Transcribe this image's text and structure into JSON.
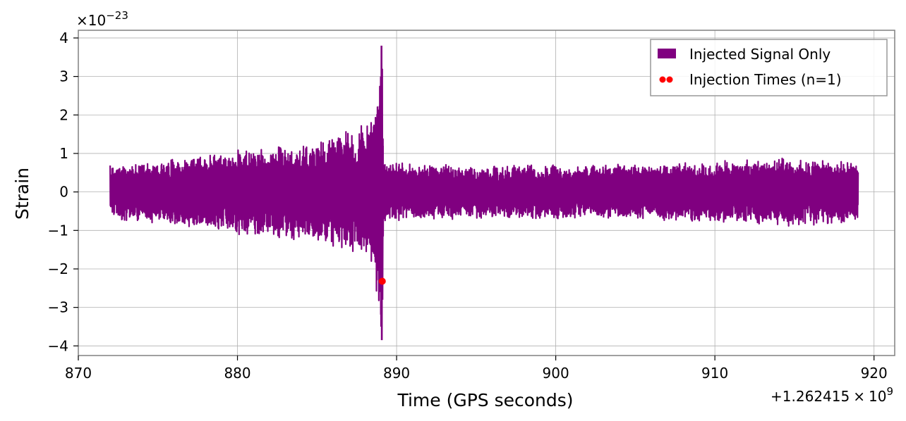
{
  "chart_data": {
    "type": "line",
    "xlabel": "Time (GPS seconds)",
    "ylabel": "Strain",
    "x_offset_label": "+1.262415",
    "x_offset_times": "×",
    "x_offset_base": "10",
    "x_offset_exponent": "9",
    "y_scale_label": "×10",
    "y_scale_exponent": "−23",
    "xlim": [
      870,
      921.3
    ],
    "ylim": [
      -4.25,
      4.2
    ],
    "grid": true,
    "legend_position": "top-right",
    "x_ticks": [
      870,
      880,
      890,
      900,
      910,
      920
    ],
    "x_tick_labels": [
      "870",
      "880",
      "890",
      "900",
      "910",
      "920"
    ],
    "y_ticks": [
      -4,
      -3,
      -2,
      -1,
      0,
      1,
      2,
      3,
      4
    ],
    "y_tick_labels": [
      "−4",
      "−3",
      "−2",
      "−1",
      "0",
      "1",
      "2",
      "3",
      "4"
    ],
    "series": [
      {
        "name": "Injected Signal Only",
        "kind": "line",
        "color": "#800080",
        "x_start": 872.0,
        "x_end": 919.0,
        "approx_amplitude": [
          {
            "x": 872,
            "y": 0.7
          },
          {
            "x": 876,
            "y": 0.9
          },
          {
            "x": 880,
            "y": 1.1
          },
          {
            "x": 884,
            "y": 1.3
          },
          {
            "x": 886,
            "y": 1.5
          },
          {
            "x": 887.5,
            "y": 1.7
          },
          {
            "x": 888.5,
            "y": 2.0
          },
          {
            "x": 889.0,
            "y": 3.8
          },
          {
            "x": 889.2,
            "y": 0.8
          },
          {
            "x": 895,
            "y": 0.7
          },
          {
            "x": 905,
            "y": 0.75
          },
          {
            "x": 915,
            "y": 0.9
          },
          {
            "x": 919,
            "y": 0.8
          }
        ]
      },
      {
        "name": "Injection Times (n=1)",
        "kind": "scatter",
        "color": "#ff0000",
        "points": [
          {
            "x": 889.1,
            "y": -2.32
          }
        ]
      }
    ]
  }
}
